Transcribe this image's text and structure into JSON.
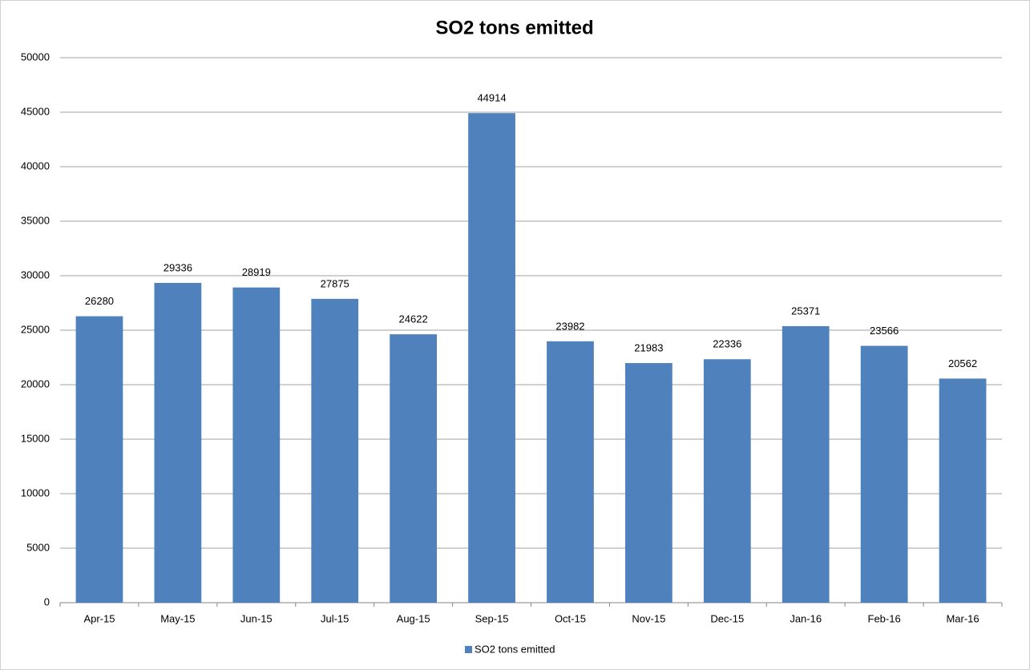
{
  "chart_data": {
    "type": "bar",
    "title": "SO2 tons emitted",
    "categories": [
      "Apr-15",
      "May-15",
      "Jun-15",
      "Jul-15",
      "Aug-15",
      "Sep-15",
      "Oct-15",
      "Nov-15",
      "Dec-15",
      "Jan-16",
      "Feb-16",
      "Mar-16"
    ],
    "series": [
      {
        "name": "SO2 tons emitted",
        "color": "#4f81bd",
        "values": [
          26280,
          29336,
          28919,
          27875,
          24622,
          44914,
          23982,
          21983,
          22336,
          25371,
          23566,
          20562
        ]
      }
    ],
    "ylim": [
      0,
      50000
    ],
    "yticks": [
      0,
      5000,
      10000,
      15000,
      20000,
      25000,
      30000,
      35000,
      40000,
      45000,
      50000
    ],
    "grid": true,
    "legend": "bottom"
  }
}
